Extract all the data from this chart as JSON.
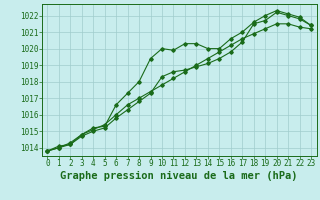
{
  "title": "Graphe pression niveau de la mer (hPa)",
  "bg_color": "#c8eded",
  "grid_color": "#a0cccc",
  "line_color": "#1a6b1a",
  "ylim": [
    1013.5,
    1022.7
  ],
  "xlim": [
    -0.5,
    23.5
  ],
  "yticks": [
    1014,
    1015,
    1016,
    1017,
    1018,
    1019,
    1020,
    1021,
    1022
  ],
  "xticks": [
    0,
    1,
    2,
    3,
    4,
    5,
    6,
    7,
    8,
    9,
    10,
    11,
    12,
    13,
    14,
    15,
    16,
    17,
    18,
    19,
    20,
    21,
    22,
    23
  ],
  "line1_x": [
    0,
    1,
    2,
    3,
    4,
    5,
    6,
    7,
    8,
    9,
    10,
    11,
    12,
    13,
    14,
    15,
    16,
    17,
    18,
    19,
    20,
    21,
    22,
    23
  ],
  "line1_y": [
    1013.8,
    1014.0,
    1014.2,
    1014.8,
    1015.1,
    1015.4,
    1016.0,
    1016.6,
    1017.0,
    1017.4,
    1017.8,
    1018.2,
    1018.6,
    1019.0,
    1019.4,
    1019.8,
    1020.2,
    1020.6,
    1020.9,
    1021.2,
    1021.5,
    1021.5,
    1021.3,
    1021.2
  ],
  "line2_x": [
    0,
    1,
    2,
    3,
    4,
    5,
    6,
    7,
    8,
    9,
    10,
    11,
    12,
    13,
    14,
    15,
    16,
    17,
    18,
    19,
    20,
    21,
    22,
    23
  ],
  "line2_y": [
    1013.8,
    1014.0,
    1014.3,
    1014.8,
    1015.2,
    1015.3,
    1016.6,
    1017.3,
    1018.0,
    1019.4,
    1020.0,
    1019.9,
    1020.3,
    1020.3,
    1020.0,
    1020.0,
    1020.6,
    1021.0,
    1021.6,
    1022.0,
    1022.3,
    1022.1,
    1021.9,
    1021.4
  ],
  "line3_x": [
    0,
    1,
    2,
    3,
    4,
    5,
    6,
    7,
    8,
    9,
    10,
    11,
    12,
    13,
    14,
    15,
    16,
    17,
    18,
    19,
    20,
    21,
    22,
    23
  ],
  "line3_y": [
    1013.8,
    1014.1,
    1014.2,
    1014.7,
    1015.0,
    1015.2,
    1015.8,
    1016.3,
    1016.8,
    1017.3,
    1018.3,
    1018.6,
    1018.7,
    1018.9,
    1019.1,
    1019.4,
    1019.8,
    1020.4,
    1021.5,
    1021.7,
    1022.2,
    1022.0,
    1021.8,
    1021.4
  ],
  "line_width": 0.8,
  "title_fontsize": 7.5,
  "tick_fontsize": 5.5
}
